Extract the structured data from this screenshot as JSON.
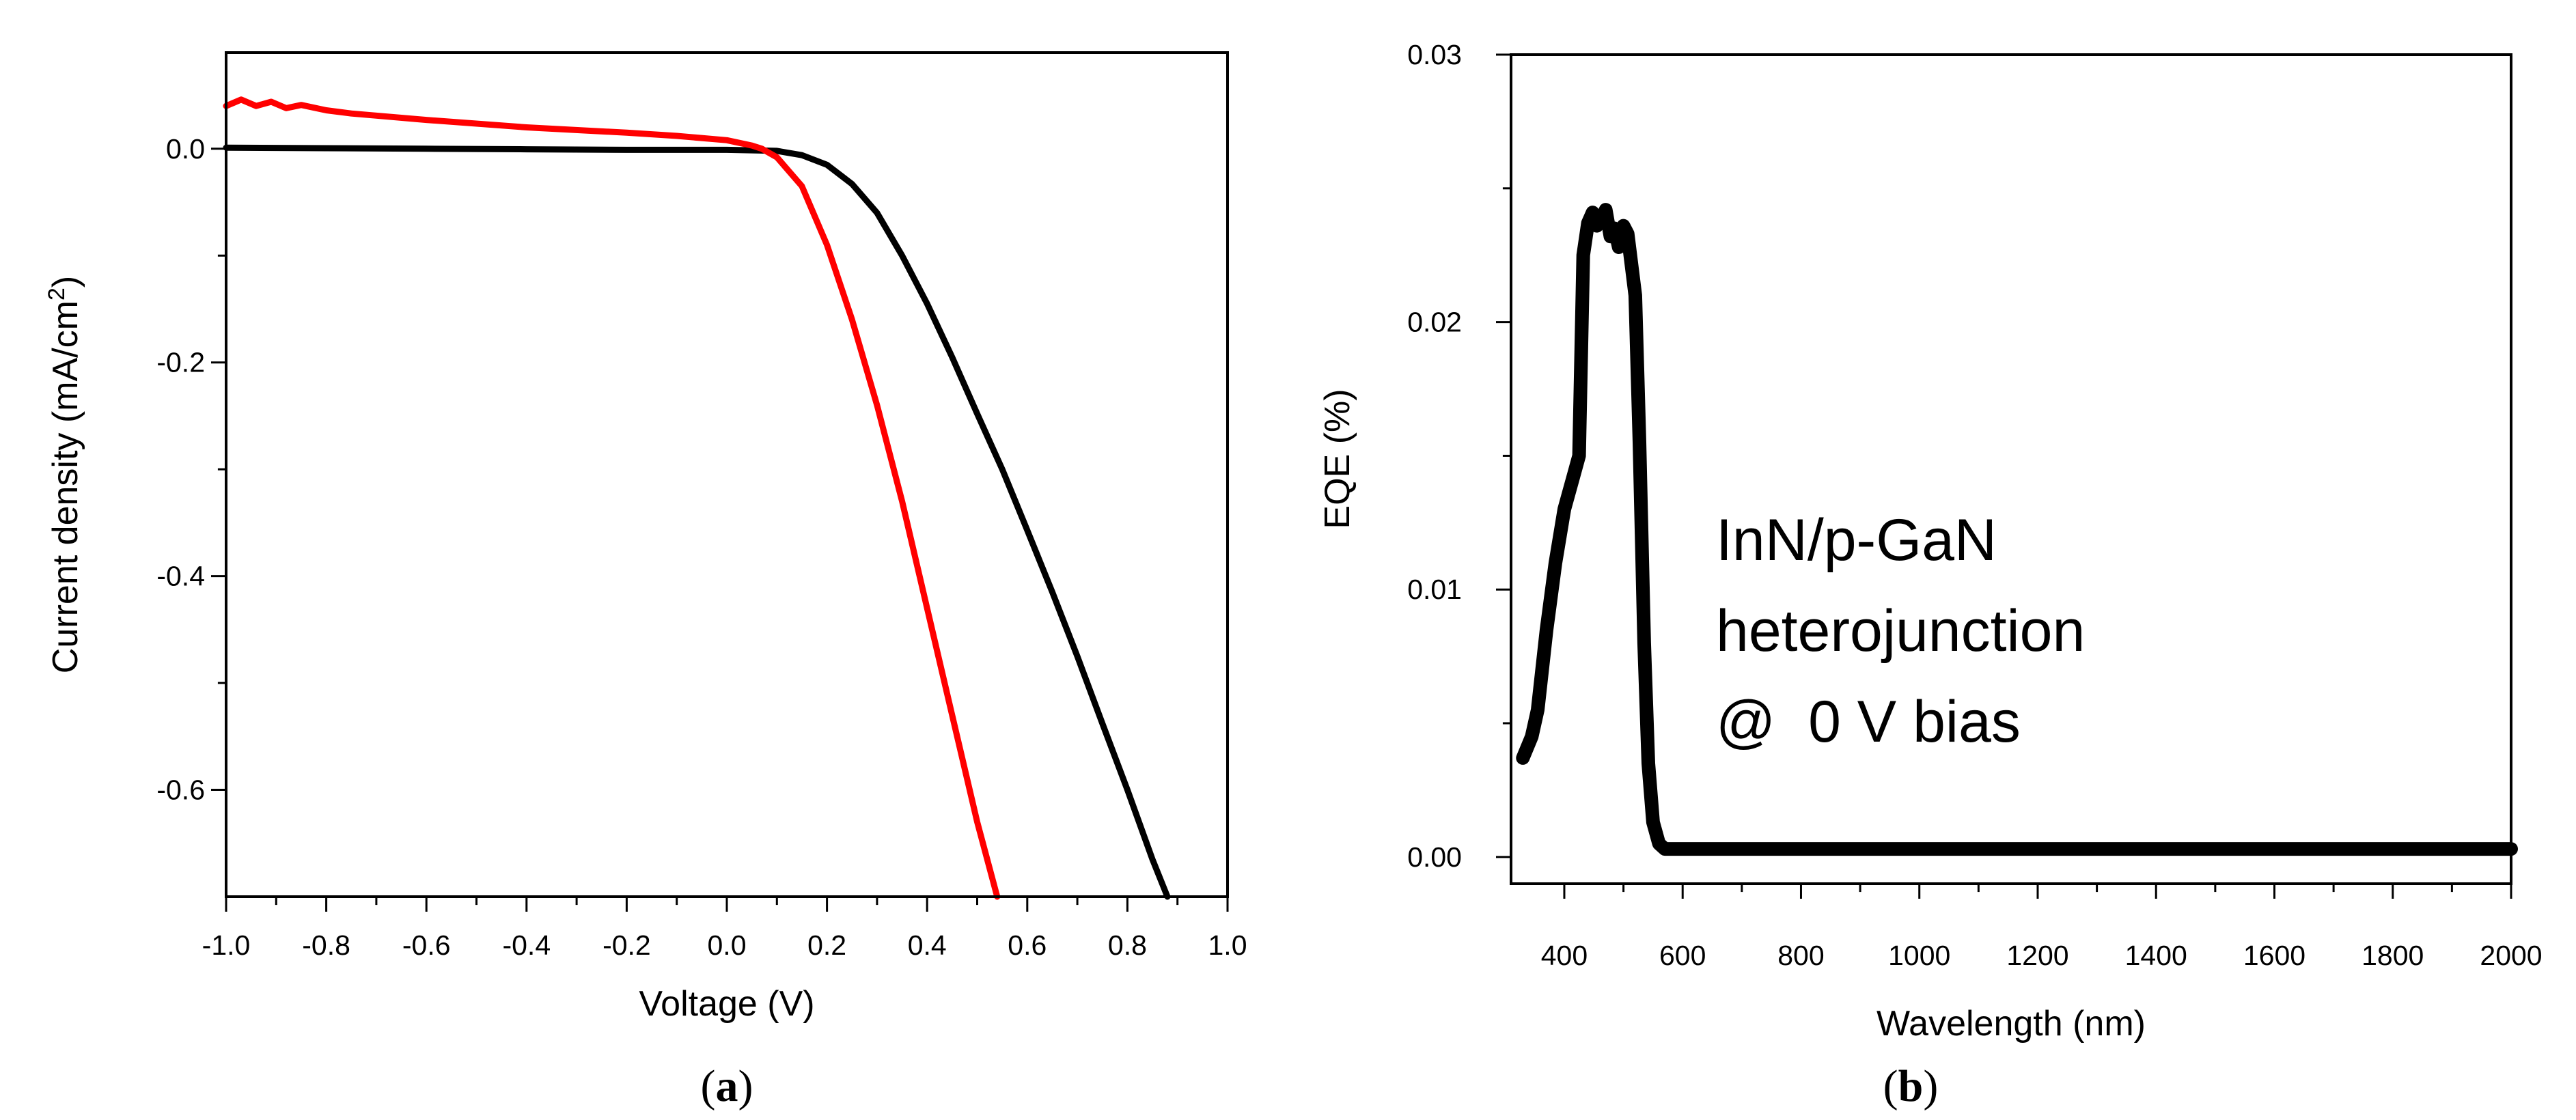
{
  "chart_data": [
    {
      "type": "line",
      "panel": "a",
      "xlabel": "Voltage (V)",
      "ylabel": "Current density (mA/cm²)",
      "xlim": [
        -1.0,
        1.0
      ],
      "ylim": [
        -0.7,
        0.09
      ],
      "xticks": [
        -1.0,
        -0.8,
        -0.6,
        -0.4,
        -0.2,
        0.0,
        0.2,
        0.4,
        0.6,
        0.8,
        1.0
      ],
      "xtick_labels": [
        "-1.0",
        "-0.8",
        "-0.6",
        "-0.4",
        "-0.2",
        "0.0",
        "0.2",
        "0.4",
        "0.6",
        "0.8",
        "1.0"
      ],
      "yticks": [
        0.0,
        -0.2,
        -0.4,
        -0.6
      ],
      "ytick_labels": [
        "0.0",
        "-0.2",
        "-0.4",
        "-0.6"
      ],
      "series": [
        {
          "name": "black curve",
          "color": "#000000",
          "x": [
            -1.0,
            -0.8,
            -0.6,
            -0.4,
            -0.2,
            0.0,
            0.1,
            0.15,
            0.2,
            0.25,
            0.3,
            0.35,
            0.4,
            0.45,
            0.5,
            0.55,
            0.6,
            0.65,
            0.7,
            0.75,
            0.8,
            0.85,
            0.88
          ],
          "y": [
            0.001,
            0.0005,
            0.0,
            -0.0005,
            -0.001,
            -0.001,
            -0.002,
            -0.006,
            -0.015,
            -0.033,
            -0.06,
            -0.1,
            -0.145,
            -0.195,
            -0.248,
            -0.3,
            -0.357,
            -0.415,
            -0.475,
            -0.538,
            -0.6,
            -0.665,
            -0.7
          ]
        },
        {
          "name": "red curve",
          "color": "#ff0000",
          "x": [
            -1.0,
            -0.97,
            -0.94,
            -0.91,
            -0.88,
            -0.85,
            -0.8,
            -0.75,
            -0.7,
            -0.6,
            -0.4,
            -0.2,
            -0.1,
            0.0,
            0.05,
            0.07,
            0.1,
            0.15,
            0.2,
            0.25,
            0.3,
            0.35,
            0.4,
            0.45,
            0.5,
            0.54
          ],
          "y": [
            0.04,
            0.046,
            0.04,
            0.044,
            0.038,
            0.041,
            0.036,
            0.033,
            0.031,
            0.027,
            0.02,
            0.015,
            0.012,
            0.008,
            0.003,
            0.0,
            -0.008,
            -0.035,
            -0.09,
            -0.16,
            -0.24,
            -0.33,
            -0.43,
            -0.53,
            -0.63,
            -0.7
          ]
        }
      ],
      "panel_label": "(a)"
    },
    {
      "type": "line",
      "panel": "b",
      "xlabel": "Wavelength (nm)",
      "ylabel": "EQE (%)",
      "xlim": [
        310,
        2000
      ],
      "ylim": [
        -0.001,
        0.03
      ],
      "xticks": [
        400,
        600,
        800,
        1000,
        1200,
        1400,
        1600,
        1800,
        2000
      ],
      "xtick_labels": [
        "400",
        "600",
        "800",
        "1000",
        "1200",
        "1400",
        "1600",
        "1800",
        "2000"
      ],
      "yticks": [
        0.0,
        0.01,
        0.02,
        0.03
      ],
      "ytick_labels": [
        "0.00",
        "0.01",
        "0.02",
        "0.03"
      ],
      "series": [
        {
          "name": "EQE",
          "color": "#000000",
          "x": [
            330,
            345,
            355,
            370,
            385,
            400,
            415,
            425,
            432,
            440,
            448,
            455,
            462,
            470,
            478,
            485,
            492,
            500,
            507,
            520,
            527,
            535,
            542,
            550,
            560,
            570,
            585,
            600,
            800,
            1000,
            1200,
            1400,
            1600,
            1800,
            2000
          ],
          "y": [
            0.0037,
            0.0045,
            0.0055,
            0.0085,
            0.011,
            0.013,
            0.0142,
            0.015,
            0.0225,
            0.0237,
            0.0241,
            0.0236,
            0.0238,
            0.0242,
            0.0232,
            0.0235,
            0.0228,
            0.0236,
            0.0233,
            0.021,
            0.0155,
            0.008,
            0.0035,
            0.0013,
            0.0005,
            0.0003,
            0.0003,
            0.0003,
            0.0003,
            0.0003,
            0.0003,
            0.0003,
            0.0003,
            0.0003,
            0.0003
          ]
        }
      ],
      "annotation": [
        "InN/p-GaN",
        "heterojunction",
        "@  0 V bias"
      ],
      "panel_label": "(b)"
    }
  ]
}
